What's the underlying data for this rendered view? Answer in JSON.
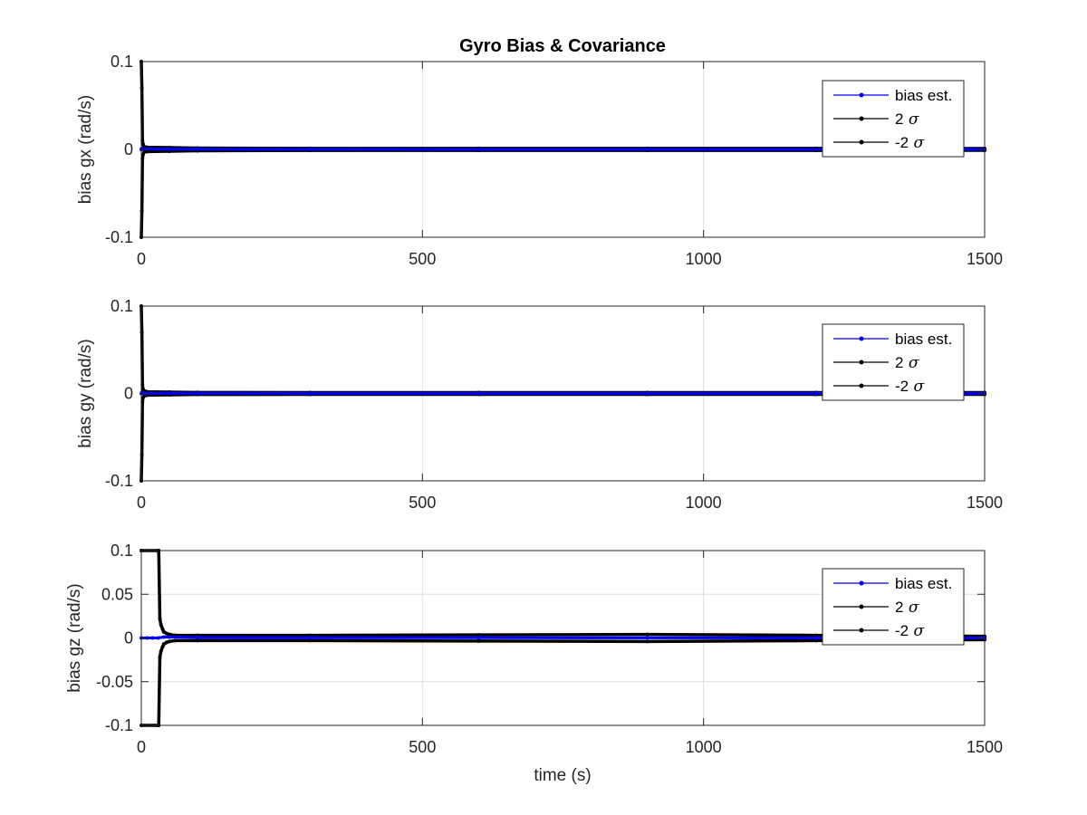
{
  "figure": {
    "title": "Gyro Bias & Covariance",
    "xlabel": "time (s)"
  },
  "colors": {
    "bias_est": "#0000ff",
    "sigma": "#000000",
    "grid": "#dfdfdf",
    "axes": "#262626"
  },
  "chart_data": [
    {
      "type": "line",
      "ylabel": "bias gx (rad/s)",
      "xlim": [
        0,
        1500
      ],
      "ylim": [
        -0.1,
        0.1
      ],
      "xticks": [
        0,
        500,
        1000,
        1500
      ],
      "yticks": [
        -0.1,
        0,
        0.1
      ],
      "xtick_labels": [
        "0",
        "500",
        "1000",
        "1500"
      ],
      "ytick_labels": [
        "-0.1",
        "0",
        "0.1"
      ],
      "grid": true,
      "legend_position": "top-right",
      "series": [
        {
          "name": "bias est.",
          "color": "#0000ff",
          "x": [
            0,
            1,
            2,
            5,
            10,
            50,
            100,
            300,
            600,
            900,
            1200,
            1500
          ],
          "y": [
            0,
            0.001,
            0.001,
            0.0005,
            0.0005,
            0.0003,
            0.0002,
            0.0001,
            0,
            0,
            0,
            0
          ]
        },
        {
          "name": "2 σ",
          "color": "#000000",
          "x": [
            0,
            1,
            2,
            3,
            5,
            10,
            50,
            100,
            300,
            600,
            900,
            1200,
            1500
          ],
          "y": [
            0.1,
            0.07,
            0.01,
            0.006,
            0.003,
            0.0025,
            0.002,
            0.0015,
            0.0012,
            0.0011,
            0.0011,
            0.0011,
            0.001
          ]
        },
        {
          "name": "-2 σ",
          "color": "#000000",
          "x": [
            0,
            1,
            2,
            3,
            5,
            10,
            50,
            100,
            300,
            600,
            900,
            1200,
            1500
          ],
          "y": [
            -0.1,
            -0.07,
            -0.01,
            -0.006,
            -0.003,
            -0.0025,
            -0.002,
            -0.0015,
            -0.0012,
            -0.0011,
            -0.0011,
            -0.0011,
            -0.001
          ]
        }
      ],
      "legend_labels": [
        "bias est.",
        "2",
        "-2"
      ]
    },
    {
      "type": "line",
      "ylabel": "bias gy (rad/s)",
      "xlim": [
        0,
        1500
      ],
      "ylim": [
        -0.1,
        0.1
      ],
      "xticks": [
        0,
        500,
        1000,
        1500
      ],
      "yticks": [
        -0.1,
        0,
        0.1
      ],
      "xtick_labels": [
        "0",
        "500",
        "1000",
        "1500"
      ],
      "ytick_labels": [
        "-0.1",
        "0",
        "0.1"
      ],
      "grid": true,
      "legend_position": "top-right",
      "series": [
        {
          "name": "bias est.",
          "color": "#0000ff",
          "x": [
            0,
            1,
            2,
            5,
            10,
            50,
            100,
            300,
            600,
            900,
            1200,
            1500
          ],
          "y": [
            0,
            0.001,
            0.0008,
            0.0004,
            0.0003,
            0.0002,
            0.0001,
            0,
            0,
            0,
            0,
            0
          ]
        },
        {
          "name": "2 σ",
          "color": "#000000",
          "x": [
            0,
            1,
            2,
            3,
            5,
            10,
            50,
            100,
            300,
            600,
            900,
            1200,
            1500
          ],
          "y": [
            0.1,
            0.07,
            0.01,
            0.005,
            0.003,
            0.002,
            0.0015,
            0.0012,
            0.001,
            0.001,
            0.001,
            0.001,
            0.001
          ]
        },
        {
          "name": "-2 σ",
          "color": "#000000",
          "x": [
            0,
            1,
            2,
            3,
            5,
            10,
            50,
            100,
            300,
            600,
            900,
            1200,
            1500
          ],
          "y": [
            -0.1,
            -0.07,
            -0.01,
            -0.005,
            -0.003,
            -0.002,
            -0.0015,
            -0.0012,
            -0.001,
            -0.001,
            -0.001,
            -0.001,
            -0.001
          ]
        }
      ],
      "legend_labels": [
        "bias est.",
        "2",
        "-2"
      ]
    },
    {
      "type": "line",
      "ylabel": "bias gz (rad/s)",
      "xlim": [
        0,
        1500
      ],
      "ylim": [
        -0.1,
        0.1
      ],
      "xticks": [
        0,
        500,
        1000,
        1500
      ],
      "yticks": [
        -0.1,
        -0.05,
        0,
        0.05,
        0.1
      ],
      "xtick_labels": [
        "0",
        "500",
        "1000",
        "1500"
      ],
      "ytick_labels": [
        "-0.1",
        "-0.05",
        "0",
        "0.05",
        "0.1"
      ],
      "grid": true,
      "legend_position": "top-right",
      "series": [
        {
          "name": "bias est.",
          "color": "#0000ff",
          "x": [
            0,
            10,
            20,
            30,
            40,
            50,
            100,
            300,
            600,
            900,
            1200,
            1500
          ],
          "y": [
            0,
            0,
            0,
            0,
            0.001,
            0.001,
            0.0005,
            0.0003,
            0.0002,
            0.0001,
            0,
            0
          ]
        },
        {
          "name": "2 σ",
          "color": "#000000",
          "x": [
            0,
            30,
            31,
            33,
            35,
            38,
            40,
            45,
            50,
            60,
            100,
            300,
            600,
            900,
            1200,
            1500
          ],
          "y": [
            0.1,
            0.1,
            0.1,
            0.022,
            0.015,
            0.01,
            0.007,
            0.005,
            0.004,
            0.003,
            0.003,
            0.003,
            0.0035,
            0.004,
            0.003,
            0.002
          ]
        },
        {
          "name": "-2 σ",
          "color": "#000000",
          "x": [
            0,
            30,
            31,
            33,
            35,
            38,
            40,
            45,
            50,
            60,
            100,
            300,
            600,
            900,
            1200,
            1500
          ],
          "y": [
            -0.1,
            -0.1,
            -0.1,
            -0.022,
            -0.015,
            -0.01,
            -0.007,
            -0.005,
            -0.004,
            -0.003,
            -0.003,
            -0.003,
            -0.0035,
            -0.004,
            -0.003,
            -0.002
          ]
        }
      ],
      "legend_labels": [
        "bias est.",
        "2",
        "-2"
      ]
    }
  ]
}
